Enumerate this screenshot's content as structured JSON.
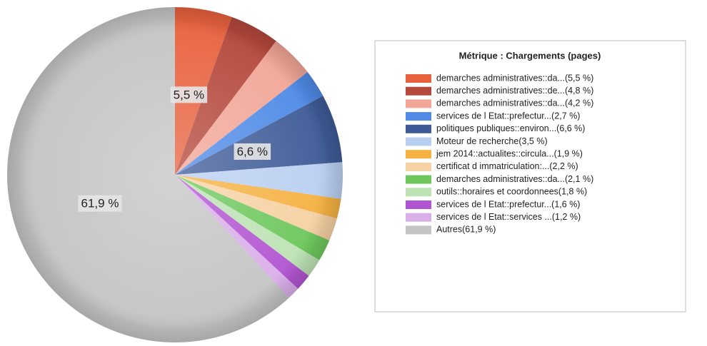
{
  "chart_data": {
    "type": "pie",
    "legend_title": "Métrique :  Chargements (pages)",
    "categories": [
      "demarches administratives::da...(5,5 %)",
      "demarches administratives::de...(4,8 %)",
      "demarches administratives::da...(4,2 %)",
      "services de l Etat::prefectur...(2,7 %)",
      "politiques publiques::environ...(6,6 %)",
      "Moteur de recherche(3,5 %)",
      "jem 2014::actualites::circula...(1,9 %)",
      "certificat d immatriculation:...(2,2 %)",
      "demarches administratives::da...(2,1 %)",
      "outils::horaires et coordonnees(1,8 %)",
      "services de l Etat::prefectur...(1,6 %)",
      "services de l Etat::services ...(1,2 %)",
      "Autres(61,9 %)"
    ],
    "values": [
      5.5,
      4.8,
      4.2,
      2.7,
      6.6,
      3.5,
      1.9,
      2.2,
      2.1,
      1.8,
      1.6,
      1.2,
      61.9
    ],
    "value_labels": [
      "5,5 %",
      null,
      null,
      null,
      "6,6 %",
      null,
      null,
      null,
      null,
      null,
      null,
      null,
      "61,9 %"
    ],
    "colors": [
      "#e8623e",
      "#b4483b",
      "#f1a697",
      "#4f8ae6",
      "#3f5b97",
      "#b9cff1",
      "#f5b142",
      "#f6d1a3",
      "#6dc75c",
      "#bde2b4",
      "#b154d1",
      "#d9aee9",
      "#c4c4c4"
    ],
    "legend": "right"
  }
}
